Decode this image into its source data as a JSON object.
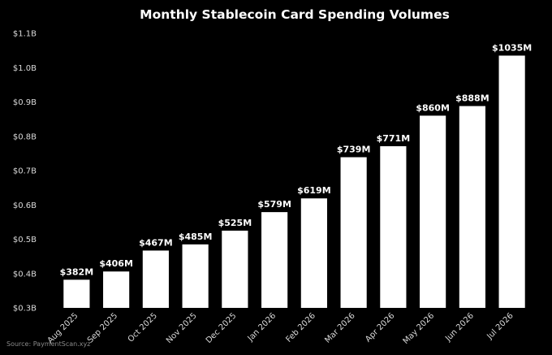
{
  "colors": {
    "background": "#000000",
    "bar": "#ffffff",
    "text": "#ffffff",
    "tick": "#d9d9d9",
    "source": "#8a8a8a"
  },
  "source": "Source: PaymentScan.xyz",
  "chart_data": {
    "type": "bar",
    "title": "Monthly Stablecoin Card Spending Volumes",
    "xlabel": "",
    "ylabel": "",
    "ylim": [
      0.3,
      1.1
    ],
    "yunit": "billion USD",
    "yticks": [
      0.3,
      0.4,
      0.5,
      0.6,
      0.7,
      0.8,
      0.9,
      1.0,
      1.1
    ],
    "ytick_labels": [
      "$0.3B",
      "$0.4B",
      "$0.5B",
      "$0.6B",
      "$0.7B",
      "$0.8B",
      "$0.9B",
      "$1.0B",
      "$1.1B"
    ],
    "categories": [
      "Aug 2025",
      "Sep 2025",
      "Oct 2025",
      "Nov 2025",
      "Dec 2025",
      "Jan 2026",
      "Feb 2026",
      "Mar 2026",
      "Apr 2026",
      "May 2026",
      "Jun 2026",
      "Jul 2026"
    ],
    "values": [
      0.382,
      0.406,
      0.467,
      0.485,
      0.525,
      0.579,
      0.619,
      0.739,
      0.771,
      0.86,
      0.888,
      1.035
    ],
    "data_labels": [
      "$382M",
      "$406M",
      "$467M",
      "$485M",
      "$525M",
      "$579M",
      "$619M",
      "$739M",
      "$771M",
      "$860M",
      "$888M",
      "$1035M"
    ],
    "grid": false,
    "legend": "none"
  }
}
